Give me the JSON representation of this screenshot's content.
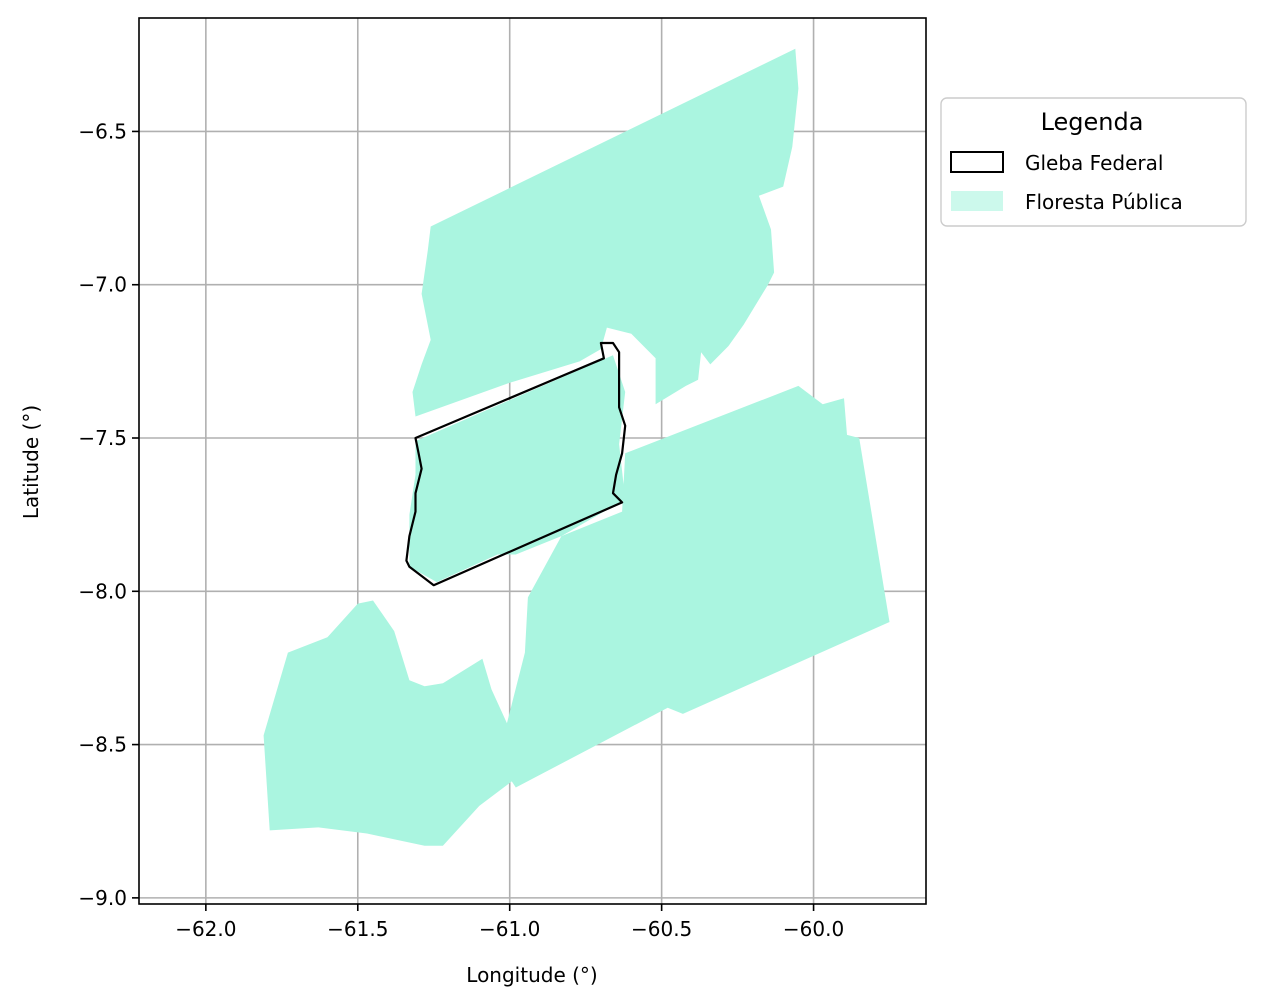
{
  "chart_data": {
    "type": "map",
    "xlabel": "Longitude (°)",
    "ylabel": "Latitude (°)",
    "xlim": [
      -62.22,
      -59.63
    ],
    "ylim": [
      -9.02,
      -6.13
    ],
    "x_ticks": [
      -62.0,
      -61.5,
      -61.0,
      -60.5,
      -60.0
    ],
    "x_tick_labels": [
      "−62.0",
      "−61.5",
      "−61.0",
      "−60.5",
      "−60.0"
    ],
    "y_ticks": [
      -6.5,
      -7.0,
      -7.5,
      -8.0,
      -8.5,
      -9.0
    ],
    "y_tick_labels": [
      "−6.5",
      "−7.0",
      "−7.5",
      "−8.0",
      "−8.5",
      "−9.0"
    ],
    "grid": true,
    "legend": {
      "title": "Legenda",
      "placement": "outside-right-top",
      "entries": [
        {
          "label": "Gleba Federal",
          "style": "outline",
          "color": "#000000"
        },
        {
          "label": "Floresta Pública",
          "style": "fill",
          "color": "#aaf5e0"
        }
      ]
    },
    "colors": {
      "forest_fill": "#aaf5e0",
      "gleba_edge": "#000000",
      "grid": "#b0b0b0"
    },
    "layers": {
      "floresta_publica": [
        [
          [
            -61.26,
            -6.81
          ],
          [
            -60.06,
            -6.23
          ],
          [
            -60.05,
            -6.36
          ],
          [
            -60.07,
            -6.55
          ],
          [
            -60.1,
            -6.68
          ],
          [
            -60.18,
            -6.71
          ],
          [
            -60.14,
            -6.82
          ],
          [
            -60.13,
            -6.96
          ],
          [
            -60.15,
            -7.0
          ],
          [
            -60.23,
            -7.13
          ],
          [
            -60.28,
            -7.2
          ],
          [
            -60.34,
            -7.26
          ],
          [
            -60.37,
            -7.22
          ],
          [
            -60.38,
            -7.31
          ],
          [
            -60.42,
            -7.33
          ],
          [
            -60.52,
            -7.39
          ],
          [
            -60.52,
            -7.24
          ],
          [
            -60.6,
            -7.16
          ],
          [
            -60.68,
            -7.14
          ],
          [
            -60.7,
            -7.21
          ],
          [
            -60.77,
            -7.25
          ],
          [
            -61.0,
            -7.32
          ],
          [
            -61.31,
            -7.43
          ],
          [
            -61.32,
            -7.35
          ],
          [
            -61.29,
            -7.26
          ],
          [
            -61.26,
            -7.18
          ],
          [
            -61.29,
            -7.03
          ],
          [
            -61.27,
            -6.89
          ]
        ],
        [
          [
            -61.31,
            -7.51
          ],
          [
            -60.66,
            -7.23
          ],
          [
            -60.62,
            -7.35
          ],
          [
            -60.64,
            -7.52
          ],
          [
            -60.62,
            -7.7
          ],
          [
            -60.83,
            -7.82
          ],
          [
            -60.98,
            -7.88
          ],
          [
            -61.04,
            -7.88
          ],
          [
            -61.24,
            -7.97
          ],
          [
            -61.33,
            -7.92
          ],
          [
            -61.33,
            -7.75
          ],
          [
            -61.31,
            -7.62
          ]
        ],
        [
          [
            -60.62,
            -7.55
          ],
          [
            -60.05,
            -7.33
          ],
          [
            -59.97,
            -7.39
          ],
          [
            -59.9,
            -7.37
          ],
          [
            -59.89,
            -7.49
          ],
          [
            -59.85,
            -7.5
          ],
          [
            -59.75,
            -8.1
          ],
          [
            -60.43,
            -8.4
          ],
          [
            -60.48,
            -8.38
          ],
          [
            -60.98,
            -8.64
          ],
          [
            -61.04,
            -8.55
          ],
          [
            -60.95,
            -8.2
          ],
          [
            -60.94,
            -8.02
          ],
          [
            -60.83,
            -7.82
          ],
          [
            -60.63,
            -7.74
          ]
        ],
        [
          [
            -61.5,
            -8.04
          ],
          [
            -61.45,
            -8.03
          ],
          [
            -61.38,
            -8.13
          ],
          [
            -61.33,
            -8.29
          ],
          [
            -61.28,
            -8.31
          ],
          [
            -61.22,
            -8.3
          ],
          [
            -61.09,
            -8.22
          ],
          [
            -61.06,
            -8.32
          ],
          [
            -61.0,
            -8.45
          ],
          [
            -60.98,
            -8.61
          ],
          [
            -61.1,
            -8.7
          ],
          [
            -61.22,
            -8.83
          ],
          [
            -61.28,
            -8.83
          ],
          [
            -61.47,
            -8.79
          ],
          [
            -61.63,
            -8.77
          ],
          [
            -61.79,
            -8.78
          ],
          [
            -61.81,
            -8.47
          ],
          [
            -61.73,
            -8.2
          ],
          [
            -61.6,
            -8.15
          ]
        ]
      ],
      "gleba_federal": [
        [
          [
            -61.31,
            -7.5
          ],
          [
            -60.69,
            -7.24
          ],
          [
            -60.7,
            -7.19
          ],
          [
            -60.66,
            -7.19
          ],
          [
            -60.64,
            -7.22
          ],
          [
            -60.64,
            -7.3
          ],
          [
            -60.64,
            -7.4
          ],
          [
            -60.62,
            -7.46
          ],
          [
            -60.63,
            -7.55
          ],
          [
            -60.65,
            -7.62
          ],
          [
            -60.66,
            -7.68
          ],
          [
            -60.64,
            -7.7
          ],
          [
            -60.63,
            -7.71
          ],
          [
            -61.25,
            -7.98
          ],
          [
            -61.29,
            -7.95
          ],
          [
            -61.33,
            -7.92
          ],
          [
            -61.34,
            -7.9
          ],
          [
            -61.33,
            -7.82
          ],
          [
            -61.31,
            -7.74
          ],
          [
            -61.31,
            -7.68
          ],
          [
            -61.29,
            -7.6
          ],
          [
            -61.3,
            -7.55
          ]
        ]
      ]
    }
  }
}
